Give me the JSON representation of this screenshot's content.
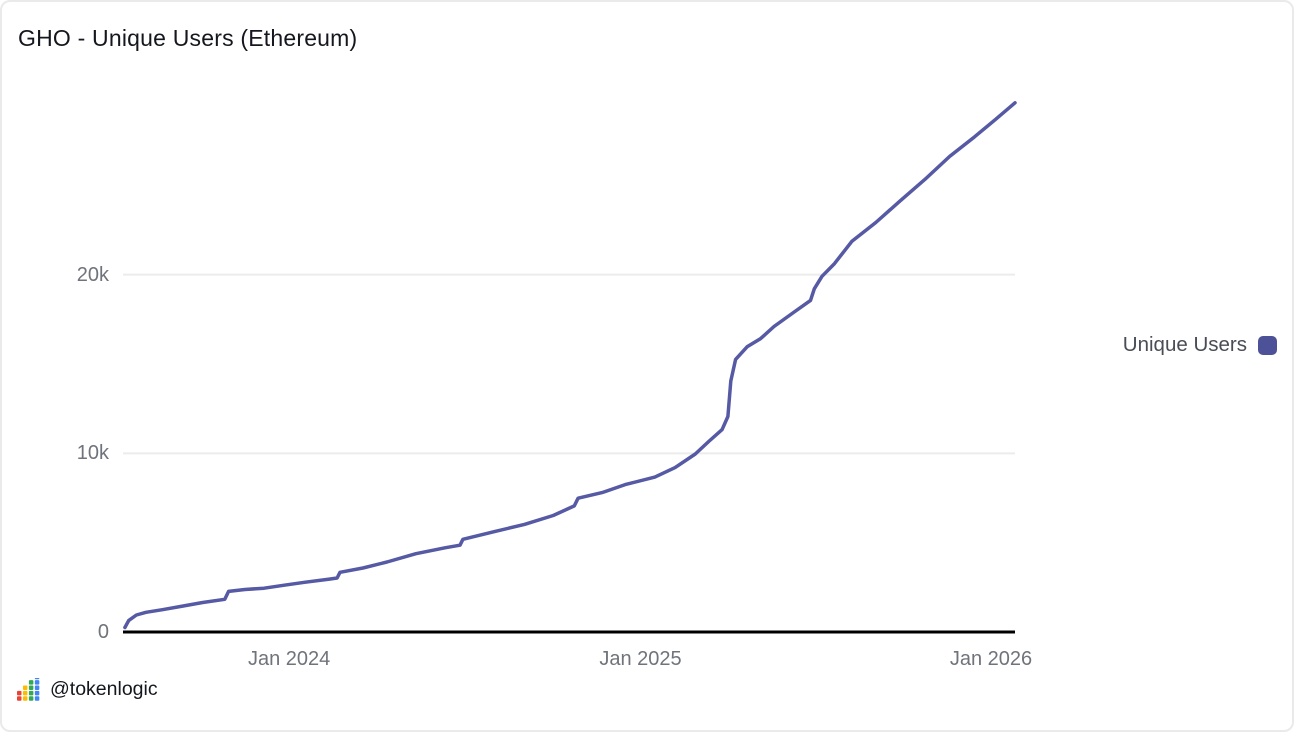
{
  "title": "GHO - Unique Users (Ethereum)",
  "legend": {
    "label": "Unique Users",
    "marker_color": "#4d5298"
  },
  "attribution": {
    "handle": "@tokenlogic",
    "logo_colors": [
      "#ea4335",
      "#fbbc04",
      "#34a853",
      "#4285f4"
    ],
    "logo_bars": [
      2,
      3,
      4,
      5
    ]
  },
  "colors": {
    "line": "#5659a4",
    "grid": "#ececec",
    "axis": "#000000",
    "tick_text": "#6f737b",
    "title_text": "#15171e",
    "border": "#eaeaea"
  },
  "chart_data": {
    "type": "line",
    "title": "GHO - Unique Users (Ethereum)",
    "series": [
      {
        "name": "Unique Users",
        "color": "#5659a4"
      }
    ],
    "xlabel": "",
    "ylabel": "",
    "xlim": [
      "2023-07-12",
      "2026-01-26"
    ],
    "ylim": [
      0,
      30000
    ],
    "grid": "horizontal",
    "legend_position": "right-middle",
    "xticks": [
      {
        "date": "2024-01-01",
        "label": "Jan 2024"
      },
      {
        "date": "2025-01-01",
        "label": "Jan 2025"
      },
      {
        "date": "2026-01-01",
        "label": "Jan 2026"
      }
    ],
    "yticks": [
      {
        "value": 0,
        "label": "0"
      },
      {
        "value": 10000,
        "label": "10k"
      },
      {
        "value": 20000,
        "label": "20k"
      }
    ],
    "points": [
      [
        "2023-07-14",
        250
      ],
      [
        "2023-07-18",
        650
      ],
      [
        "2023-07-26",
        950
      ],
      [
        "2023-08-05",
        1100
      ],
      [
        "2023-08-22",
        1250
      ],
      [
        "2023-09-12",
        1450
      ],
      [
        "2023-10-03",
        1650
      ],
      [
        "2023-10-26",
        1830
      ],
      [
        "2023-10-30",
        2270
      ],
      [
        "2023-11-16",
        2380
      ],
      [
        "2023-12-06",
        2450
      ],
      [
        "2023-12-27",
        2620
      ],
      [
        "2024-01-17",
        2780
      ],
      [
        "2024-02-12",
        2960
      ],
      [
        "2024-02-20",
        3020
      ],
      [
        "2024-02-23",
        3340
      ],
      [
        "2024-03-18",
        3580
      ],
      [
        "2024-04-12",
        3920
      ],
      [
        "2024-05-12",
        4380
      ],
      [
        "2024-06-12",
        4720
      ],
      [
        "2024-06-27",
        4860
      ],
      [
        "2024-06-30",
        5190
      ],
      [
        "2024-08-02",
        5620
      ],
      [
        "2024-09-02",
        6020
      ],
      [
        "2024-10-02",
        6520
      ],
      [
        "2024-10-24",
        7060
      ],
      [
        "2024-10-28",
        7490
      ],
      [
        "2024-11-22",
        7800
      ],
      [
        "2024-12-16",
        8250
      ],
      [
        "2025-01-16",
        8670
      ],
      [
        "2025-02-06",
        9200
      ],
      [
        "2025-02-27",
        9960
      ],
      [
        "2025-03-13",
        10660
      ],
      [
        "2025-03-27",
        11330
      ],
      [
        "2025-04-02",
        12060
      ],
      [
        "2025-04-05",
        14050
      ],
      [
        "2025-04-10",
        15260
      ],
      [
        "2025-04-22",
        15960
      ],
      [
        "2025-05-06",
        16420
      ],
      [
        "2025-05-20",
        17100
      ],
      [
        "2025-06-10",
        17910
      ],
      [
        "2025-06-27",
        18560
      ],
      [
        "2025-07-01",
        19210
      ],
      [
        "2025-07-09",
        19910
      ],
      [
        "2025-07-22",
        20620
      ],
      [
        "2025-08-09",
        21860
      ],
      [
        "2025-09-03",
        22920
      ],
      [
        "2025-09-28",
        24110
      ],
      [
        "2025-10-24",
        25320
      ],
      [
        "2025-11-19",
        26620
      ],
      [
        "2025-12-15",
        27720
      ],
      [
        "2026-01-06",
        28700
      ],
      [
        "2026-01-26",
        29620
      ]
    ]
  }
}
